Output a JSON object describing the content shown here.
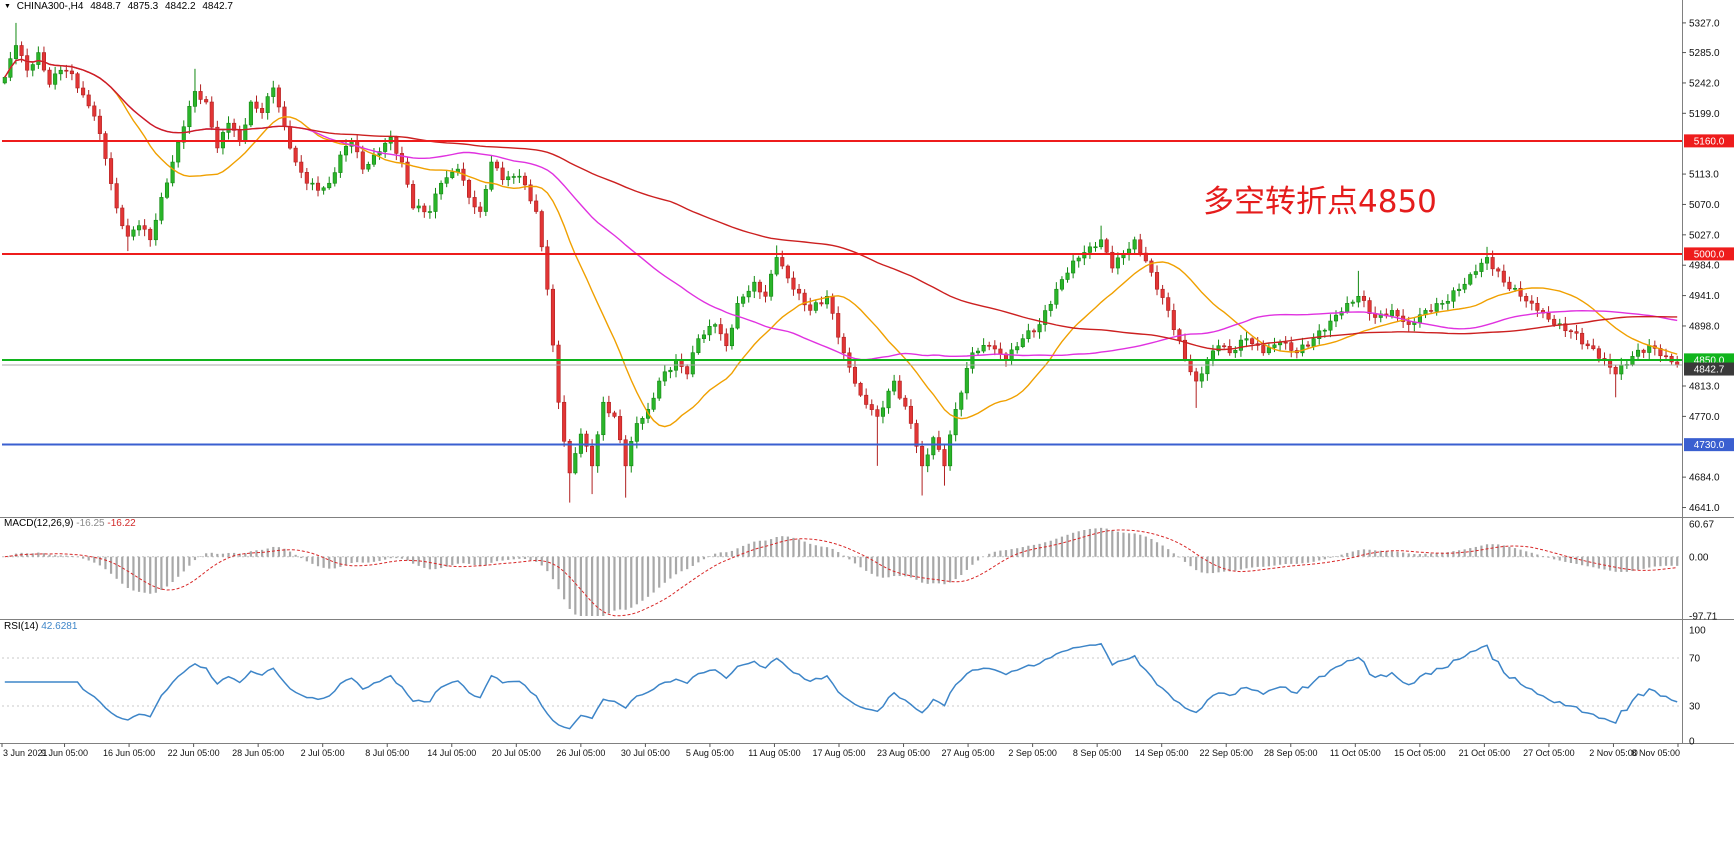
{
  "window": {
    "symbol_dropdown_icon": "▼",
    "symbol_label": "CHINA300-,H4",
    "ohlc": {
      "open": "4848.7",
      "high": "4875.3",
      "low": "4842.2",
      "close": "4842.7"
    }
  },
  "annotation": {
    "text": "多空转折点4850",
    "color": "#e51c1c"
  },
  "panes": {
    "macd": {
      "name": "MACD(12,26,9)",
      "value_main": "-16.25",
      "value_signal": "-16.22",
      "axis_labels": [
        "60.67",
        "0.00",
        "-97.71"
      ],
      "axis_max": 60.67,
      "axis_min": -97.71
    },
    "rsi": {
      "name": "RSI(14)",
      "value": "42.6281",
      "axis_labels": [
        "100",
        "70",
        "30",
        "0"
      ],
      "levels": [
        70,
        30
      ]
    }
  },
  "price_axis": {
    "ticks": [
      {
        "label": "5327.0",
        "value": 5327
      },
      {
        "label": "5285.0",
        "value": 5285
      },
      {
        "label": "5242.0",
        "value": 5242
      },
      {
        "label": "5199.0",
        "value": 5199
      },
      {
        "label": "5113.0",
        "value": 5113
      },
      {
        "label": "5070.0",
        "value": 5070
      },
      {
        "label": "5027.0",
        "value": 5027
      },
      {
        "label": "4984.0",
        "value": 4984
      },
      {
        "label": "4941.0",
        "value": 4941
      },
      {
        "label": "4898.0",
        "value": 4898
      },
      {
        "label": "4813.0",
        "value": 4813
      },
      {
        "label": "4770.0",
        "value": 4770
      },
      {
        "label": "4684.0",
        "value": 4684
      },
      {
        "label": "4641.0",
        "value": 4641
      }
    ],
    "range_top": 5341,
    "range_bottom": 4629
  },
  "lines": {
    "hlines": [
      {
        "label": "5160.0",
        "value": 5160,
        "color": "#ee1c1c"
      },
      {
        "label": "5000.0",
        "value": 5000,
        "color": "#ee1c1c"
      },
      {
        "label": "4850.0",
        "value": 4850,
        "color": "#10b41c"
      },
      {
        "label": "4730.0",
        "value": 4730,
        "color": "#3a5fd0"
      }
    ],
    "bid": {
      "label": "4842.7",
      "value": 4842.7,
      "line_color": "#a8a8a8",
      "badge_color": "#3a3a3a"
    }
  },
  "time_axis": {
    "labels": [
      "3 Jun 2021",
      "9 Jun 05:00",
      "16 Jun 05:00",
      "22 Jun 05:00",
      "28 Jun 05:00",
      "2 Jul 05:00",
      "8 Jul 05:00",
      "14 Jul 05:00",
      "20 Jul 05:00",
      "26 Jul 05:00",
      "30 Jul 05:00",
      "5 Aug 05:00",
      "11 Aug 05:00",
      "17 Aug 05:00",
      "23 Aug 05:00",
      "27 Aug 05:00",
      "2 Sep 05:00",
      "8 Sep 05:00",
      "14 Sep 05:00",
      "22 Sep 05:00",
      "28 Sep 05:00",
      "11 Oct 05:00",
      "15 Oct 05:00",
      "21 Oct 05:00",
      "27 Oct 05:00",
      "2 Nov 05:00",
      "8 Nov 05:00"
    ]
  },
  "chart_data": {
    "type": "candlestick",
    "symbol": "CHINA300-",
    "timeframe": "H4",
    "title": "CHINA300- H4 candlestick chart with MACD and RSI",
    "ohlc_current": [
      4848.7,
      4875.3,
      4842.2,
      4842.7
    ],
    "ylim": [
      4629,
      5341
    ],
    "num_candles": 300,
    "noise_amp": 7,
    "wick_base": 8,
    "close_anchors": [
      [
        0,
        5250
      ],
      [
        2,
        5295
      ],
      [
        4,
        5260
      ],
      [
        6,
        5285
      ],
      [
        8,
        5240
      ],
      [
        10,
        5260
      ],
      [
        12,
        5255
      ],
      [
        14,
        5225
      ],
      [
        16,
        5195
      ],
      [
        18,
        5135
      ],
      [
        20,
        5065
      ],
      [
        22,
        5025
      ],
      [
        24,
        5040
      ],
      [
        26,
        5020
      ],
      [
        28,
        5080
      ],
      [
        30,
        5130
      ],
      [
        32,
        5180
      ],
      [
        34,
        5230
      ],
      [
        36,
        5215
      ],
      [
        38,
        5150
      ],
      [
        40,
        5185
      ],
      [
        42,
        5160
      ],
      [
        44,
        5215
      ],
      [
        46,
        5200
      ],
      [
        48,
        5235
      ],
      [
        50,
        5180
      ],
      [
        52,
        5130
      ],
      [
        54,
        5100
      ],
      [
        56,
        5090
      ],
      [
        58,
        5100
      ],
      [
        60,
        5140
      ],
      [
        62,
        5160
      ],
      [
        64,
        5120
      ],
      [
        66,
        5140
      ],
      [
        69,
        5165
      ],
      [
        71,
        5130
      ],
      [
        73,
        5065
      ],
      [
        76,
        5060
      ],
      [
        78,
        5100
      ],
      [
        81,
        5120
      ],
      [
        83,
        5080
      ],
      [
        85,
        5060
      ],
      [
        87,
        5130
      ],
      [
        89,
        5105
      ],
      [
        92,
        5110
      ],
      [
        95,
        5060
      ],
      [
        97,
        4950
      ],
      [
        99,
        4790
      ],
      [
        101,
        4690
      ],
      [
        103,
        4745
      ],
      [
        105,
        4700
      ],
      [
        107,
        4790
      ],
      [
        109,
        4770
      ],
      [
        111,
        4700
      ],
      [
        113,
        4760
      ],
      [
        115,
        4780
      ],
      [
        117,
        4820
      ],
      [
        120,
        4850
      ],
      [
        122,
        4830
      ],
      [
        124,
        4880
      ],
      [
        127,
        4900
      ],
      [
        129,
        4870
      ],
      [
        131,
        4930
      ],
      [
        134,
        4960
      ],
      [
        136,
        4940
      ],
      [
        138,
        4995
      ],
      [
        141,
        4950
      ],
      [
        144,
        4920
      ],
      [
        147,
        4940
      ],
      [
        150,
        4860
      ],
      [
        153,
        4800
      ],
      [
        156,
        4770
      ],
      [
        159,
        4820
      ],
      [
        162,
        4760
      ],
      [
        164,
        4700
      ],
      [
        166,
        4740
      ],
      [
        168,
        4700
      ],
      [
        170,
        4780
      ],
      [
        173,
        4860
      ],
      [
        176,
        4870
      ],
      [
        179,
        4850
      ],
      [
        182,
        4880
      ],
      [
        185,
        4900
      ],
      [
        188,
        4950
      ],
      [
        191,
        4990
      ],
      [
        194,
        5010
      ],
      [
        196,
        5020
      ],
      [
        198,
        4980
      ],
      [
        200,
        5000
      ],
      [
        202,
        5020
      ],
      [
        204,
        4990
      ],
      [
        206,
        4950
      ],
      [
        208,
        4920
      ],
      [
        211,
        4850
      ],
      [
        213,
        4820
      ],
      [
        215,
        4850
      ],
      [
        217,
        4870
      ],
      [
        219,
        4860
      ],
      [
        222,
        4880
      ],
      [
        225,
        4860
      ],
      [
        228,
        4875
      ],
      [
        231,
        4860
      ],
      [
        234,
        4880
      ],
      [
        237,
        4905
      ],
      [
        240,
        4930
      ],
      [
        242,
        4940
      ],
      [
        245,
        4910
      ],
      [
        248,
        4920
      ],
      [
        251,
        4900
      ],
      [
        254,
        4920
      ],
      [
        257,
        4930
      ],
      [
        260,
        4950
      ],
      [
        263,
        4975
      ],
      [
        265,
        4995
      ],
      [
        268,
        4960
      ],
      [
        271,
        4940
      ],
      [
        274,
        4920
      ],
      [
        277,
        4900
      ],
      [
        280,
        4890
      ],
      [
        283,
        4870
      ],
      [
        286,
        4850
      ],
      [
        288,
        4830
      ],
      [
        291,
        4855
      ],
      [
        294,
        4870
      ],
      [
        297,
        4855
      ],
      [
        299,
        4843
      ]
    ],
    "spikes": [
      [
        2,
        "h",
        5327
      ],
      [
        22,
        "l",
        5004
      ],
      [
        34,
        "h",
        5262
      ],
      [
        101,
        "l",
        4648
      ],
      [
        105,
        "l",
        4660
      ],
      [
        111,
        "l",
        4655
      ],
      [
        138,
        "h",
        5012
      ],
      [
        156,
        "l",
        4700
      ],
      [
        164,
        "l",
        4658
      ],
      [
        168,
        "l",
        4672
      ],
      [
        196,
        "h",
        5040
      ],
      [
        213,
        "l",
        4782
      ],
      [
        242,
        "h",
        4976
      ],
      [
        265,
        "h",
        5010
      ],
      [
        288,
        "l",
        4797
      ]
    ],
    "moving_averages": [
      {
        "name": "ma-fast",
        "period": 20,
        "color": "#f0a000"
      },
      {
        "name": "ma-mid",
        "period": 55,
        "color": "#e032e0"
      },
      {
        "name": "ma-slow",
        "period": 120,
        "color": "#cc2020"
      }
    ],
    "horizontal_levels": [
      5160,
      5000,
      4850,
      4730
    ],
    "indicators": [
      {
        "type": "macd",
        "params": [
          12,
          26,
          9
        ],
        "main": -16.25,
        "signal": -16.22,
        "range": [
          -97.71,
          60.67
        ],
        "hist_color": "#a8a8a8",
        "signal_color": "#d82828"
      },
      {
        "type": "rsi",
        "params": [
          14
        ],
        "value": 42.6281,
        "range": [
          0,
          100
        ],
        "line_color": "#3d85c8"
      }
    ],
    "x_label_count": 27,
    "colors": {
      "bull_fill": "#2ab42a",
      "bull_stroke": "#118811",
      "bear_fill": "#e23535",
      "bear_stroke": "#b02020",
      "background": "#ffffff",
      "separator": "#808080",
      "axis_text": "#111111"
    }
  }
}
